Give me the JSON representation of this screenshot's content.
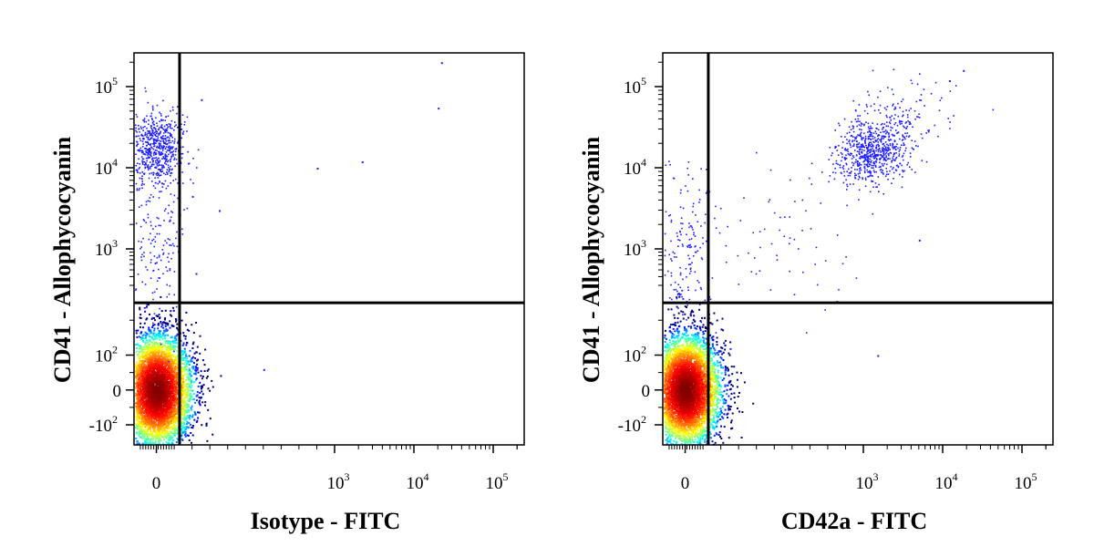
{
  "chart_data": [
    {
      "type": "scatter",
      "subtype": "flow-cytometry density dot plot",
      "xlabel": "Isotype - FITC",
      "ylabel": "CD41 - Allophycocyanin",
      "x_scale": "biexponential",
      "y_scale": "biexponential",
      "x_ticks": [
        "0",
        "10^3",
        "10^4",
        "10^5"
      ],
      "y_ticks": [
        "10^5",
        "10^4",
        "10^3",
        "10^2",
        "0",
        "-10^2"
      ],
      "xlim": [
        -100,
        200000
      ],
      "ylim": [
        -150,
        200000
      ],
      "gates": {
        "x": 130,
        "y": 250
      },
      "populations": [
        {
          "name": "",
          "x_center": 0,
          "y_center": 0,
          "count": 5200,
          "style": "dense"
        },
        {
          "name": "",
          "x_center": 0,
          "y_center": 18000,
          "count": 650,
          "style": "sparse"
        },
        {
          "name": "",
          "x_center": 0,
          "y_center": 1000,
          "count": 170,
          "style": "sparse"
        }
      ],
      "outliers": [
        [
          250,
          70000
        ],
        [
          900,
          10000
        ],
        [
          200,
          4500
        ],
        [
          2200,
          12000
        ],
        [
          350,
          3000
        ],
        [
          220,
          450
        ],
        [
          22000,
          200000
        ],
        [
          20000,
          55000
        ],
        [
          600,
          60
        ],
        [
          180,
          100
        ]
      ],
      "grid": false,
      "legend": "none"
    },
    {
      "type": "scatter",
      "subtype": "flow-cytometry density dot plot",
      "xlabel": "CD42a - FITC",
      "ylabel": "CD41 - Allophycocyanin",
      "x_scale": "biexponential",
      "y_scale": "biexponential",
      "x_ticks": [
        "0",
        "10^3",
        "10^4",
        "10^5"
      ],
      "y_ticks": [
        "10^5",
        "10^4",
        "10^3",
        "10^2",
        "0",
        "-10^2"
      ],
      "xlim": [
        -100,
        200000
      ],
      "ylim": [
        -150,
        200000
      ],
      "gates": {
        "x": 130,
        "y": 250
      },
      "populations": [
        {
          "name": "",
          "x_center": 0,
          "y_center": 0,
          "count": 5200,
          "style": "dense"
        },
        {
          "name": "",
          "x_center": 1300,
          "y_center": 17000,
          "count": 700,
          "style": "sparse"
        },
        {
          "name": "",
          "x_center": 0,
          "y_center": 1000,
          "count": 170,
          "style": "sparse"
        },
        {
          "name": "",
          "x_center": 3000,
          "y_center": 50000,
          "count": 90,
          "style": "sparse"
        },
        {
          "name": "",
          "x_center": 600,
          "y_center": 900,
          "count": 60,
          "style": "sparse"
        }
      ],
      "outliers": [
        [
          250,
          120
        ],
        [
          1500,
          100
        ],
        [
          5000,
          1300
        ],
        [
          12000,
          120000
        ],
        [
          18000,
          160000
        ]
      ],
      "grid": false,
      "legend": "none"
    }
  ]
}
